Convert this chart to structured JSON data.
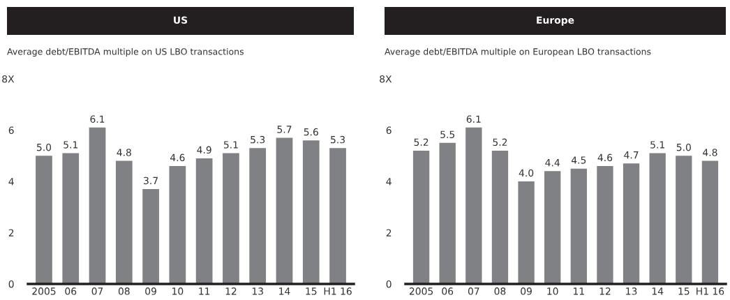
{
  "chart_data": [
    {
      "type": "bar",
      "title": "US",
      "subtitle": "Average debt/EBITDA multiple on US LBO transactions",
      "categories": [
        "2005",
        "06",
        "07",
        "08",
        "09",
        "10",
        "11",
        "12",
        "13",
        "14",
        "15",
        "H1 16"
      ],
      "values": [
        5.0,
        5.1,
        6.1,
        4.8,
        3.7,
        4.6,
        4.9,
        5.1,
        5.3,
        5.7,
        5.6,
        5.3
      ],
      "value_labels": [
        "5.0",
        "5.1",
        "6.1",
        "4.8",
        "3.7",
        "4.6",
        "4.9",
        "5.1",
        "5.3",
        "5.7",
        "5.6",
        "5.3"
      ],
      "color": "#808184",
      "ylim": [
        0,
        8
      ],
      "yticks": [
        0,
        2,
        4,
        6,
        {
          "value": 8,
          "label": "8X"
        }
      ],
      "grid": false
    },
    {
      "type": "bar",
      "title": "Europe",
      "subtitle": "Average debt/EBITDA multiple on European LBO transactions",
      "categories": [
        "2005",
        "06",
        "07",
        "08",
        "09",
        "10",
        "11",
        "12",
        "13",
        "14",
        "15",
        "H1 16"
      ],
      "values": [
        5.2,
        5.5,
        6.1,
        5.2,
        4.0,
        4.4,
        4.5,
        4.6,
        4.7,
        5.1,
        5.0,
        4.8
      ],
      "value_labels": [
        "5.2",
        "5.5",
        "6.1",
        "5.2",
        "4.0",
        "4.4",
        "4.5",
        "4.6",
        "4.7",
        "5.1",
        "5.0",
        "4.8"
      ],
      "color": "#808184",
      "ylim": [
        0,
        8
      ],
      "yticks": [
        0,
        2,
        4,
        6,
        {
          "value": 8,
          "label": "8X"
        }
      ],
      "grid": false
    }
  ]
}
